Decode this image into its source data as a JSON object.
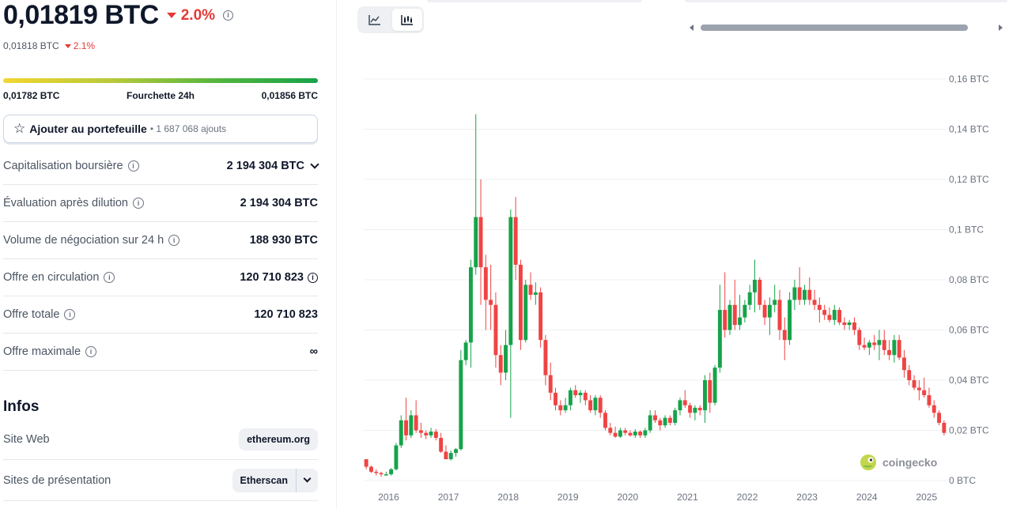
{
  "price": {
    "main": "0,01819 BTC",
    "change": "2.0%",
    "sub_value": "0,01818 BTC",
    "sub_change": "2.1%"
  },
  "range": {
    "low": "0,01782 BTC",
    "label": "Fourchette 24h",
    "high": "0,01856 BTC"
  },
  "portfolio": {
    "label": "Ajouter au portefeuille",
    "count": "• 1 687 068 ajouts"
  },
  "stats": [
    {
      "label": "Capitalisation boursière",
      "value": "2 194 304 BTC",
      "info": true,
      "value_info": false,
      "chevron": true
    },
    {
      "label": "Évaluation après dilution",
      "value": "2 194 304 BTC",
      "info": true,
      "value_info": false,
      "chevron": false
    },
    {
      "label": "Volume de négociation sur 24 h",
      "value": "188 930 BTC",
      "info": true,
      "value_info": false,
      "chevron": false
    },
    {
      "label": "Offre en circulation",
      "value": "120 710 823",
      "info": true,
      "value_info": true,
      "chevron": false
    },
    {
      "label": "Offre totale",
      "value": "120 710 823",
      "info": true,
      "value_info": false,
      "chevron": false
    },
    {
      "label": "Offre maximale",
      "value": "∞",
      "info": true,
      "value_info": false,
      "chevron": false
    }
  ],
  "infos": {
    "title": "Infos",
    "website_label": "Site Web",
    "website_value": "ethereum.org",
    "explorers_label": "Sites de présentation",
    "explorers_value": "Etherscan"
  },
  "colors": {
    "up": "#16a34a",
    "down": "#ef4444",
    "grid": "#eef0f3",
    "axis_text": "#6b7280"
  },
  "watermark": "coingecko",
  "chart_data": {
    "type": "candlestick",
    "title": "",
    "xlabel": "",
    "ylabel": "",
    "y_unit": "BTC",
    "ylim": [
      0,
      0.16
    ],
    "y_ticks": [
      "0 BTC",
      "0,02 BTC",
      "0,04 BTC",
      "0,06 BTC",
      "0,08 BTC",
      "0,1 BTC",
      "0,12 BTC",
      "0,14 BTC",
      "0,16 BTC"
    ],
    "x_ticks": [
      "2016",
      "2017",
      "2018",
      "2019",
      "2020",
      "2021",
      "2022",
      "2023",
      "2024",
      "2025"
    ],
    "x_range": [
      "2015-08",
      "2025-05"
    ],
    "grid": true,
    "candles": [
      {
        "date": "2015-08",
        "o": 0.0085,
        "h": 0.0085,
        "l": 0.0045,
        "c": 0.0055
      },
      {
        "date": "2015-09",
        "o": 0.0055,
        "h": 0.006,
        "l": 0.003,
        "c": 0.0035
      },
      {
        "date": "2015-10",
        "o": 0.0035,
        "h": 0.0045,
        "l": 0.002,
        "c": 0.003
      },
      {
        "date": "2015-11",
        "o": 0.003,
        "h": 0.0035,
        "l": 0.0015,
        "c": 0.0025
      },
      {
        "date": "2015-12",
        "o": 0.0025,
        "h": 0.0035,
        "l": 0.002,
        "c": 0.0025
      },
      {
        "date": "2016-01",
        "o": 0.0025,
        "h": 0.005,
        "l": 0.002,
        "c": 0.0045
      },
      {
        "date": "2016-02",
        "o": 0.0045,
        "h": 0.015,
        "l": 0.004,
        "c": 0.014
      },
      {
        "date": "2016-03",
        "o": 0.014,
        "h": 0.026,
        "l": 0.013,
        "c": 0.024
      },
      {
        "date": "2016-04",
        "o": 0.024,
        "h": 0.033,
        "l": 0.016,
        "c": 0.018
      },
      {
        "date": "2016-05",
        "o": 0.018,
        "h": 0.028,
        "l": 0.017,
        "c": 0.026
      },
      {
        "date": "2016-06",
        "o": 0.026,
        "h": 0.032,
        "l": 0.019,
        "c": 0.02
      },
      {
        "date": "2016-07",
        "o": 0.02,
        "h": 0.023,
        "l": 0.017,
        "c": 0.019
      },
      {
        "date": "2016-08",
        "o": 0.019,
        "h": 0.02,
        "l": 0.0165,
        "c": 0.018
      },
      {
        "date": "2016-09",
        "o": 0.018,
        "h": 0.021,
        "l": 0.017,
        "c": 0.0195
      },
      {
        "date": "2016-10",
        "o": 0.0195,
        "h": 0.0205,
        "l": 0.016,
        "c": 0.017
      },
      {
        "date": "2016-11",
        "o": 0.017,
        "h": 0.019,
        "l": 0.011,
        "c": 0.0115
      },
      {
        "date": "2016-12",
        "o": 0.0115,
        "h": 0.014,
        "l": 0.009,
        "c": 0.0085
      },
      {
        "date": "2017-01",
        "o": 0.0085,
        "h": 0.012,
        "l": 0.008,
        "c": 0.011
      },
      {
        "date": "2017-02",
        "o": 0.011,
        "h": 0.013,
        "l": 0.0095,
        "c": 0.0125
      },
      {
        "date": "2017-03",
        "o": 0.0125,
        "h": 0.052,
        "l": 0.012,
        "c": 0.048
      },
      {
        "date": "2017-04",
        "o": 0.048,
        "h": 0.056,
        "l": 0.046,
        "c": 0.055
      },
      {
        "date": "2017-05",
        "o": 0.055,
        "h": 0.088,
        "l": 0.045,
        "c": 0.085
      },
      {
        "date": "2017-06",
        "o": 0.085,
        "h": 0.146,
        "l": 0.082,
        "c": 0.105
      },
      {
        "date": "2017-07",
        "o": 0.105,
        "h": 0.12,
        "l": 0.07,
        "c": 0.085
      },
      {
        "date": "2017-08",
        "o": 0.085,
        "h": 0.09,
        "l": 0.06,
        "c": 0.072
      },
      {
        "date": "2017-09",
        "o": 0.072,
        "h": 0.086,
        "l": 0.06,
        "c": 0.07
      },
      {
        "date": "2017-10",
        "o": 0.07,
        "h": 0.075,
        "l": 0.045,
        "c": 0.05
      },
      {
        "date": "2017-11",
        "o": 0.05,
        "h": 0.054,
        "l": 0.038,
        "c": 0.043
      },
      {
        "date": "2017-12",
        "o": 0.043,
        "h": 0.06,
        "l": 0.04,
        "c": 0.054
      },
      {
        "date": "2018-01",
        "o": 0.054,
        "h": 0.108,
        "l": 0.025,
        "c": 0.105
      },
      {
        "date": "2018-02",
        "o": 0.105,
        "h": 0.113,
        "l": 0.08,
        "c": 0.086
      },
      {
        "date": "2018-03",
        "o": 0.086,
        "h": 0.088,
        "l": 0.052,
        "c": 0.056
      },
      {
        "date": "2018-04",
        "o": 0.056,
        "h": 0.08,
        "l": 0.055,
        "c": 0.078
      },
      {
        "date": "2018-05",
        "o": 0.078,
        "h": 0.083,
        "l": 0.072,
        "c": 0.074
      },
      {
        "date": "2018-06",
        "o": 0.074,
        "h": 0.079,
        "l": 0.07,
        "c": 0.075
      },
      {
        "date": "2018-07",
        "o": 0.075,
        "h": 0.077,
        "l": 0.053,
        "c": 0.056
      },
      {
        "date": "2018-08",
        "o": 0.056,
        "h": 0.058,
        "l": 0.038,
        "c": 0.042
      },
      {
        "date": "2018-09",
        "o": 0.042,
        "h": 0.047,
        "l": 0.032,
        "c": 0.035
      },
      {
        "date": "2018-10",
        "o": 0.035,
        "h": 0.037,
        "l": 0.028,
        "c": 0.03
      },
      {
        "date": "2018-11",
        "o": 0.03,
        "h": 0.032,
        "l": 0.026,
        "c": 0.028
      },
      {
        "date": "2018-12",
        "o": 0.028,
        "h": 0.033,
        "l": 0.027,
        "c": 0.03
      },
      {
        "date": "2019-01",
        "o": 0.03,
        "h": 0.037,
        "l": 0.028,
        "c": 0.036
      },
      {
        "date": "2019-02",
        "o": 0.036,
        "h": 0.038,
        "l": 0.033,
        "c": 0.034
      },
      {
        "date": "2019-03",
        "o": 0.034,
        "h": 0.036,
        "l": 0.031,
        "c": 0.035
      },
      {
        "date": "2019-04",
        "o": 0.035,
        "h": 0.036,
        "l": 0.03,
        "c": 0.032
      },
      {
        "date": "2019-05",
        "o": 0.032,
        "h": 0.034,
        "l": 0.027,
        "c": 0.028
      },
      {
        "date": "2019-06",
        "o": 0.028,
        "h": 0.034,
        "l": 0.026,
        "c": 0.033
      },
      {
        "date": "2019-07",
        "o": 0.033,
        "h": 0.034,
        "l": 0.025,
        "c": 0.027
      },
      {
        "date": "2019-08",
        "o": 0.027,
        "h": 0.028,
        "l": 0.02,
        "c": 0.021
      },
      {
        "date": "2019-09",
        "o": 0.021,
        "h": 0.023,
        "l": 0.018,
        "c": 0.019
      },
      {
        "date": "2019-10",
        "o": 0.019,
        "h": 0.0215,
        "l": 0.017,
        "c": 0.0175
      },
      {
        "date": "2019-11",
        "o": 0.0175,
        "h": 0.021,
        "l": 0.017,
        "c": 0.02
      },
      {
        "date": "2019-12",
        "o": 0.02,
        "h": 0.021,
        "l": 0.018,
        "c": 0.019
      },
      {
        "date": "2020-01",
        "o": 0.019,
        "h": 0.02,
        "l": 0.0175,
        "c": 0.018
      },
      {
        "date": "2020-02",
        "o": 0.018,
        "h": 0.0205,
        "l": 0.017,
        "c": 0.0195
      },
      {
        "date": "2020-03",
        "o": 0.0195,
        "h": 0.02,
        "l": 0.017,
        "c": 0.018
      },
      {
        "date": "2020-04",
        "o": 0.018,
        "h": 0.021,
        "l": 0.017,
        "c": 0.02
      },
      {
        "date": "2020-05",
        "o": 0.02,
        "h": 0.028,
        "l": 0.019,
        "c": 0.026
      },
      {
        "date": "2020-06",
        "o": 0.026,
        "h": 0.028,
        "l": 0.023,
        "c": 0.024
      },
      {
        "date": "2020-07",
        "o": 0.024,
        "h": 0.025,
        "l": 0.02,
        "c": 0.022
      },
      {
        "date": "2020-08",
        "o": 0.022,
        "h": 0.026,
        "l": 0.021,
        "c": 0.025
      },
      {
        "date": "2020-09",
        "o": 0.025,
        "h": 0.026,
        "l": 0.022,
        "c": 0.023
      },
      {
        "date": "2020-10",
        "o": 0.023,
        "h": 0.029,
        "l": 0.022,
        "c": 0.028
      },
      {
        "date": "2020-11",
        "o": 0.028,
        "h": 0.033,
        "l": 0.026,
        "c": 0.032
      },
      {
        "date": "2020-12",
        "o": 0.032,
        "h": 0.036,
        "l": 0.029,
        "c": 0.03
      },
      {
        "date": "2021-01",
        "o": 0.03,
        "h": 0.031,
        "l": 0.025,
        "c": 0.027
      },
      {
        "date": "2021-02",
        "o": 0.027,
        "h": 0.03,
        "l": 0.024,
        "c": 0.029
      },
      {
        "date": "2021-03",
        "o": 0.029,
        "h": 0.03,
        "l": 0.026,
        "c": 0.028
      },
      {
        "date": "2021-04",
        "o": 0.028,
        "h": 0.042,
        "l": 0.023,
        "c": 0.04
      },
      {
        "date": "2021-05",
        "o": 0.04,
        "h": 0.043,
        "l": 0.027,
        "c": 0.031
      },
      {
        "date": "2021-06",
        "o": 0.031,
        "h": 0.046,
        "l": 0.03,
        "c": 0.045
      },
      {
        "date": "2021-07",
        "o": 0.045,
        "h": 0.078,
        "l": 0.043,
        "c": 0.068
      },
      {
        "date": "2021-08",
        "o": 0.068,
        "h": 0.083,
        "l": 0.057,
        "c": 0.06
      },
      {
        "date": "2021-09",
        "o": 0.06,
        "h": 0.072,
        "l": 0.058,
        "c": 0.07
      },
      {
        "date": "2021-10",
        "o": 0.07,
        "h": 0.08,
        "l": 0.06,
        "c": 0.062
      },
      {
        "date": "2021-11",
        "o": 0.062,
        "h": 0.074,
        "l": 0.06,
        "c": 0.065
      },
      {
        "date": "2021-12",
        "o": 0.065,
        "h": 0.072,
        "l": 0.063,
        "c": 0.07
      },
      {
        "date": "2022-01",
        "o": 0.07,
        "h": 0.078,
        "l": 0.068,
        "c": 0.075
      },
      {
        "date": "2022-02",
        "o": 0.075,
        "h": 0.088,
        "l": 0.067,
        "c": 0.08
      },
      {
        "date": "2022-03",
        "o": 0.08,
        "h": 0.081,
        "l": 0.068,
        "c": 0.07
      },
      {
        "date": "2022-04",
        "o": 0.07,
        "h": 0.072,
        "l": 0.062,
        "c": 0.065
      },
      {
        "date": "2022-05",
        "o": 0.065,
        "h": 0.073,
        "l": 0.058,
        "c": 0.07
      },
      {
        "date": "2022-06",
        "o": 0.07,
        "h": 0.078,
        "l": 0.067,
        "c": 0.072
      },
      {
        "date": "2022-07",
        "o": 0.072,
        "h": 0.076,
        "l": 0.056,
        "c": 0.06
      },
      {
        "date": "2022-08",
        "o": 0.06,
        "h": 0.065,
        "l": 0.048,
        "c": 0.056
      },
      {
        "date": "2022-09",
        "o": 0.056,
        "h": 0.075,
        "l": 0.054,
        "c": 0.072
      },
      {
        "date": "2022-10",
        "o": 0.072,
        "h": 0.08,
        "l": 0.068,
        "c": 0.077
      },
      {
        "date": "2022-11",
        "o": 0.077,
        "h": 0.085,
        "l": 0.07,
        "c": 0.072
      },
      {
        "date": "2022-12",
        "o": 0.072,
        "h": 0.078,
        "l": 0.07,
        "c": 0.076
      },
      {
        "date": "2023-01",
        "o": 0.076,
        "h": 0.081,
        "l": 0.07,
        "c": 0.072
      },
      {
        "date": "2023-02",
        "o": 0.072,
        "h": 0.076,
        "l": 0.068,
        "c": 0.07
      },
      {
        "date": "2023-03",
        "o": 0.07,
        "h": 0.073,
        "l": 0.063,
        "c": 0.068
      },
      {
        "date": "2023-04",
        "o": 0.068,
        "h": 0.07,
        "l": 0.064,
        "c": 0.066
      },
      {
        "date": "2023-05",
        "o": 0.066,
        "h": 0.069,
        "l": 0.063,
        "c": 0.064
      },
      {
        "date": "2023-06",
        "o": 0.064,
        "h": 0.07,
        "l": 0.062,
        "c": 0.068
      },
      {
        "date": "2023-07",
        "o": 0.068,
        "h": 0.069,
        "l": 0.062,
        "c": 0.063
      },
      {
        "date": "2023-08",
        "o": 0.063,
        "h": 0.065,
        "l": 0.06,
        "c": 0.062
      },
      {
        "date": "2023-09",
        "o": 0.062,
        "h": 0.064,
        "l": 0.06,
        "c": 0.063
      },
      {
        "date": "2023-10",
        "o": 0.063,
        "h": 0.065,
        "l": 0.058,
        "c": 0.06
      },
      {
        "date": "2023-11",
        "o": 0.06,
        "h": 0.061,
        "l": 0.052,
        "c": 0.054
      },
      {
        "date": "2023-12",
        "o": 0.054,
        "h": 0.057,
        "l": 0.052,
        "c": 0.053
      },
      {
        "date": "2024-01",
        "o": 0.053,
        "h": 0.056,
        "l": 0.05,
        "c": 0.055
      },
      {
        "date": "2024-02",
        "o": 0.055,
        "h": 0.058,
        "l": 0.052,
        "c": 0.054
      },
      {
        "date": "2024-03",
        "o": 0.054,
        "h": 0.06,
        "l": 0.048,
        "c": 0.056
      },
      {
        "date": "2024-04",
        "o": 0.056,
        "h": 0.06,
        "l": 0.05,
        "c": 0.052
      },
      {
        "date": "2024-05",
        "o": 0.052,
        "h": 0.056,
        "l": 0.048,
        "c": 0.05
      },
      {
        "date": "2024-06",
        "o": 0.05,
        "h": 0.058,
        "l": 0.047,
        "c": 0.056
      },
      {
        "date": "2024-07",
        "o": 0.056,
        "h": 0.058,
        "l": 0.048,
        "c": 0.049
      },
      {
        "date": "2024-08",
        "o": 0.049,
        "h": 0.052,
        "l": 0.041,
        "c": 0.044
      },
      {
        "date": "2024-09",
        "o": 0.044,
        "h": 0.046,
        "l": 0.038,
        "c": 0.04
      },
      {
        "date": "2024-10",
        "o": 0.04,
        "h": 0.042,
        "l": 0.036,
        "c": 0.037
      },
      {
        "date": "2024-11",
        "o": 0.037,
        "h": 0.04,
        "l": 0.032,
        "c": 0.036
      },
      {
        "date": "2024-12",
        "o": 0.036,
        "h": 0.041,
        "l": 0.033,
        "c": 0.034
      },
      {
        "date": "2025-01",
        "o": 0.034,
        "h": 0.037,
        "l": 0.029,
        "c": 0.03
      },
      {
        "date": "2025-02",
        "o": 0.03,
        "h": 0.032,
        "l": 0.025,
        "c": 0.027
      },
      {
        "date": "2025-03",
        "o": 0.027,
        "h": 0.028,
        "l": 0.022,
        "c": 0.023
      },
      {
        "date": "2025-04",
        "o": 0.023,
        "h": 0.024,
        "l": 0.018,
        "c": 0.019
      }
    ]
  }
}
